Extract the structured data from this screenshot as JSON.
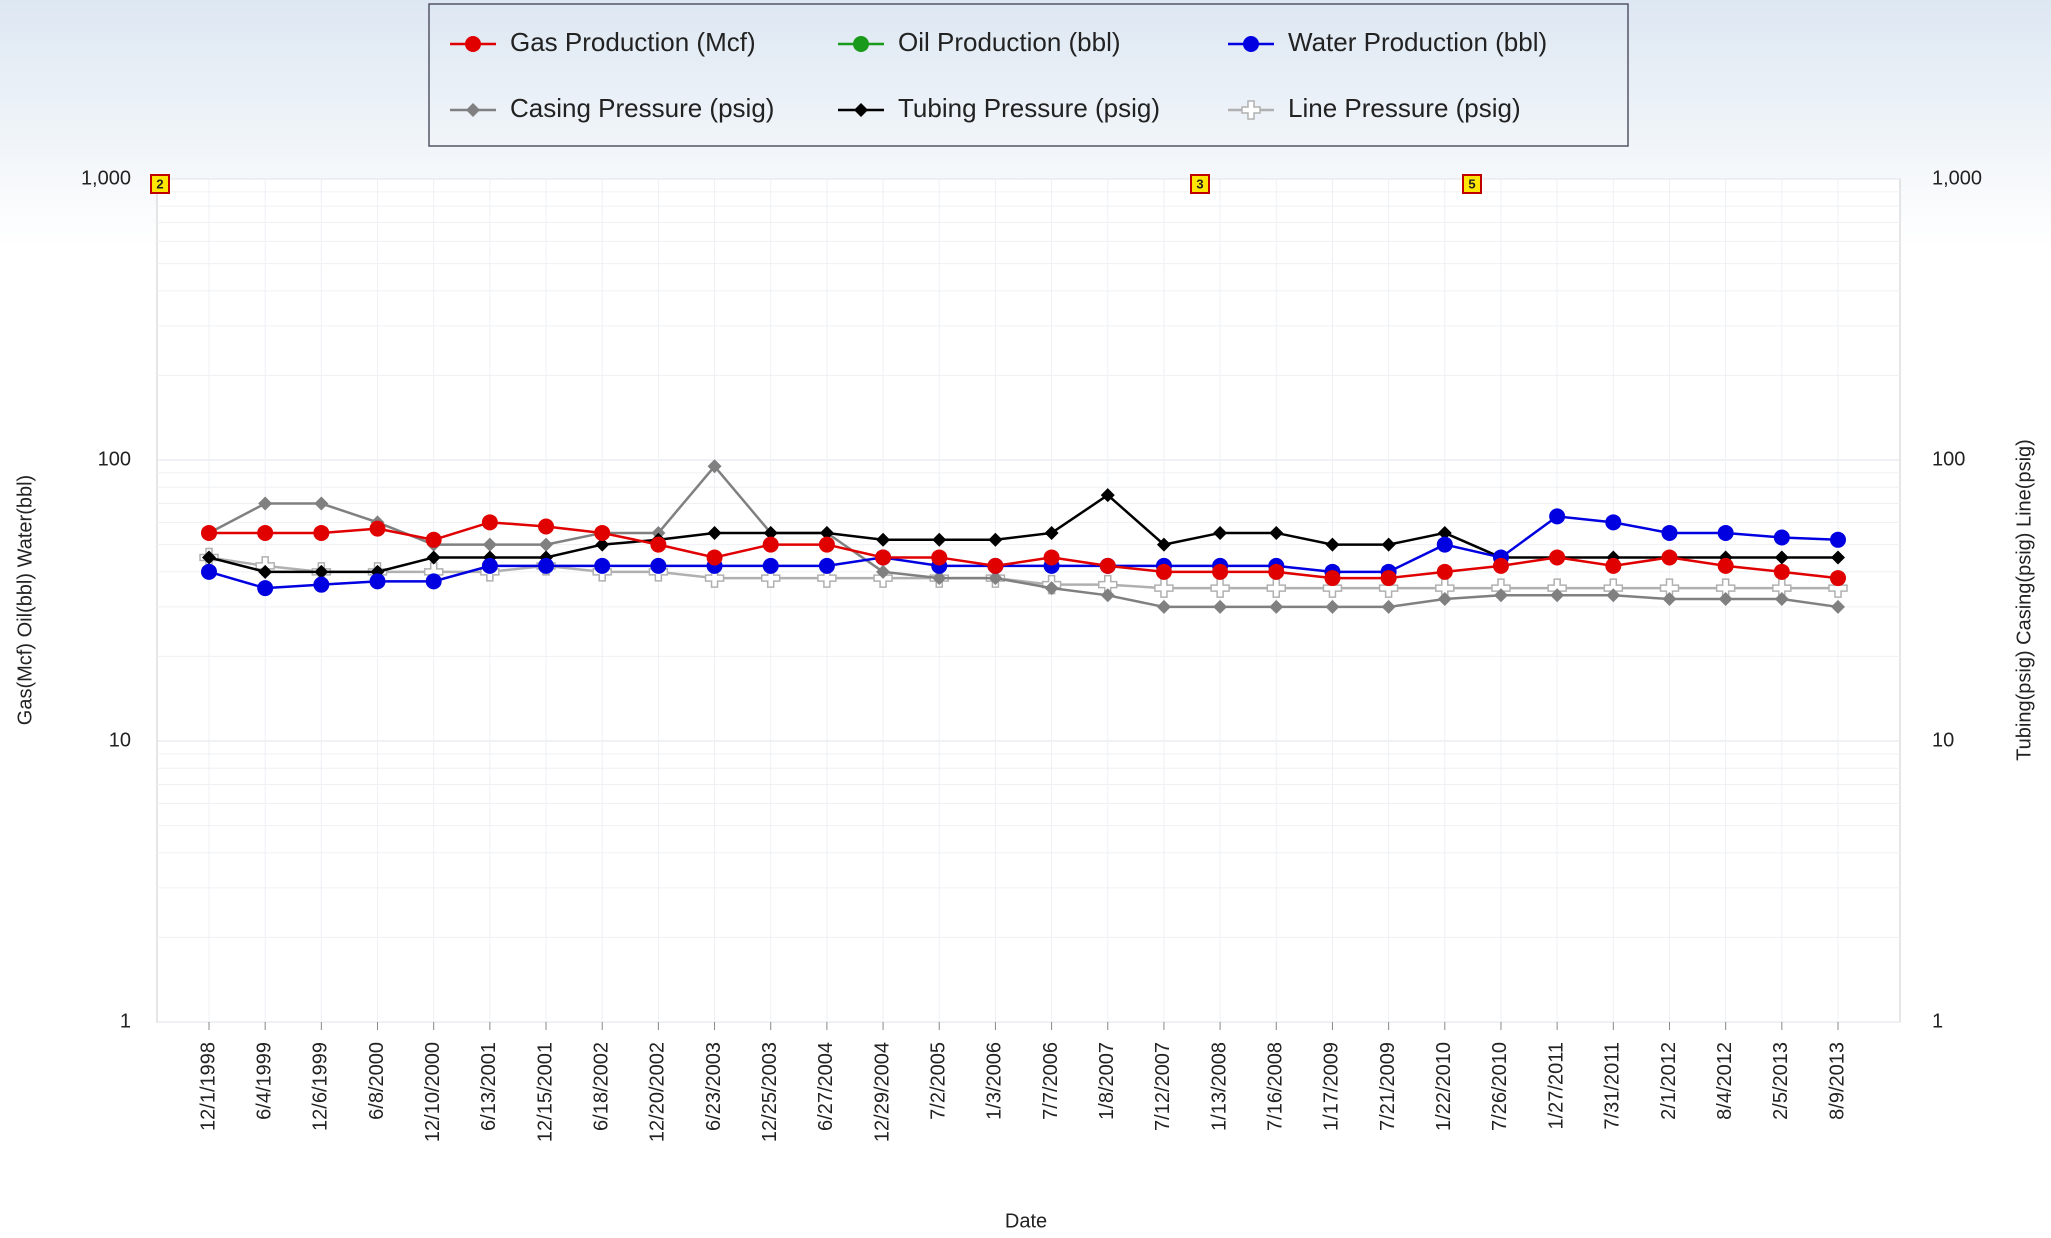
{
  "chart_data": {
    "type": "line",
    "x_label": "Date",
    "y_label": "Gas(Mcf) Oil(bbl) Water(bbl)",
    "y2_label": "Tubing(psig) Casing(psig) Line(psig)",
    "log_scale": true,
    "grid": true,
    "ylim": [
      1,
      1000
    ],
    "yticks": [
      1,
      10,
      100,
      {
        "value": 1000,
        "label": "1,000"
      }
    ],
    "y2lim": [
      1,
      1000
    ],
    "y2ticks": [
      1,
      10,
      100,
      {
        "value": 1000,
        "label": "1,000"
      }
    ],
    "annotations": [
      "2",
      "3",
      "5"
    ],
    "categories": [
      "12/1/1998",
      "6/4/1999",
      "12/6/1999",
      "6/8/2000",
      "12/10/2000",
      "6/13/2001",
      "12/15/2001",
      "6/18/2002",
      "12/20/2002",
      "6/23/2003",
      "12/25/2003",
      "6/27/2004",
      "12/29/2004",
      "7/2/2005",
      "1/3/2006",
      "7/7/2006",
      "1/8/2007",
      "7/12/2007",
      "1/13/2008",
      "7/16/2008",
      "1/17/2009",
      "7/21/2009",
      "1/22/2010",
      "7/26/2010",
      "1/27/2011",
      "7/31/2011",
      "2/1/2012",
      "8/4/2012",
      "2/5/2013",
      "8/9/2013"
    ],
    "series": [
      {
        "name": "Gas Production (Mcf)",
        "color": "#e00000",
        "marker": "circle",
        "values": [
          55,
          55,
          55,
          57,
          52,
          60,
          58,
          55,
          50,
          45,
          50,
          50,
          45,
          45,
          42,
          45,
          42,
          40,
          40,
          40,
          38,
          38,
          40,
          42,
          45,
          42,
          45,
          42,
          40,
          38
        ]
      },
      {
        "name": "Oil Production (bbl)",
        "color": "#1a9a1a",
        "marker": "circle",
        "values": [
          null,
          null,
          null,
          null,
          null,
          null,
          null,
          null,
          null,
          null,
          null,
          null,
          null,
          null,
          null,
          null,
          null,
          null,
          null,
          null,
          null,
          null,
          null,
          null,
          null,
          null,
          null,
          null,
          null,
          null
        ]
      },
      {
        "name": "Water Production (bbl)",
        "color": "#0000e0",
        "marker": "circle",
        "values": [
          40,
          35,
          36,
          37,
          37,
          42,
          42,
          42,
          42,
          42,
          42,
          42,
          45,
          42,
          42,
          42,
          42,
          42,
          42,
          42,
          40,
          40,
          50,
          45,
          63,
          60,
          55,
          55,
          53,
          52
        ]
      },
      {
        "name": "Casing Pressure (psig)",
        "color": "#808080",
        "marker": "diamond",
        "axis": "y2",
        "values": [
          55,
          70,
          70,
          60,
          50,
          50,
          50,
          55,
          55,
          95,
          55,
          55,
          40,
          38,
          38,
          35,
          33,
          30,
          30,
          30,
          30,
          30,
          32,
          33,
          33,
          33,
          32,
          32,
          32,
          30
        ]
      },
      {
        "name": "Tubing Pressure (psig)",
        "color": "#000000",
        "marker": "diamond",
        "axis": "y2",
        "values": [
          45,
          40,
          40,
          40,
          45,
          45,
          45,
          50,
          52,
          55,
          55,
          55,
          52,
          52,
          52,
          55,
          75,
          50,
          55,
          55,
          50,
          50,
          55,
          45,
          45,
          45,
          45,
          45,
          45,
          45
        ]
      },
      {
        "name": "Line Pressure (psig)",
        "color": "#b0b0b0",
        "marker": "plus",
        "axis": "y2",
        "values": [
          45,
          42,
          40,
          40,
          40,
          40,
          42,
          40,
          40,
          38,
          38,
          38,
          38,
          38,
          38,
          36,
          36,
          35,
          35,
          35,
          35,
          35,
          35,
          35,
          35,
          35,
          35,
          35,
          35,
          35
        ]
      }
    ]
  }
}
